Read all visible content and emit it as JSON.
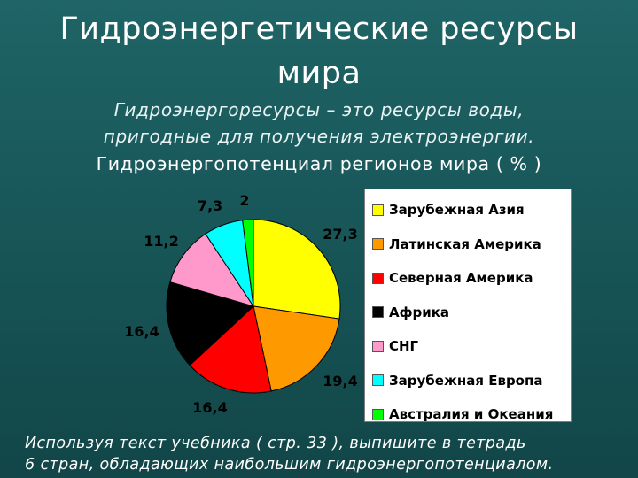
{
  "slide": {
    "title_line1": "Гидроэнергетические  ресурсы",
    "title_line2": "мира",
    "subtitle_line1": "Гидроэнергоресурсы – это  ресурсы  воды,",
    "subtitle_line2": "пригодные  для  получения  электроэнергии.",
    "chart_heading": "Гидроэнергопотенциал  регионов  мира  ( % )",
    "footer_line1": "Используя  текст  учебника  ( стр.  33 ),  выпишите  в  тетрадь",
    "footer_line2": "6  стран,  обладающих  наибольшим  гидроэнергопотенциалом."
  },
  "chart_data": {
    "type": "pie",
    "title": "Гидроэнергопотенциал  регионов  мира  ( % )",
    "legend_position": "right",
    "series": [
      {
        "name": "Зарубежная Азия",
        "value": 27.3,
        "label": "27,3",
        "color": "#ffff00"
      },
      {
        "name": "Латинская Америка",
        "value": 19.4,
        "label": "19,4",
        "color": "#ff9900"
      },
      {
        "name": "Северная Америка",
        "value": 16.4,
        "label": "16,4",
        "color": "#ff0000"
      },
      {
        "name": "Африка",
        "value": 16.4,
        "label": "16,4",
        "color": "#000000"
      },
      {
        "name": "СНГ",
        "value": 11.2,
        "label": "11,2",
        "color": "#ff99cc"
      },
      {
        "name": "Зарубежная Европа",
        "value": 7.3,
        "label": "7,3",
        "color": "#00ffff"
      },
      {
        "name": "Австралия и Океания",
        "value": 2,
        "label": "2",
        "color": "#00ff00"
      }
    ]
  }
}
